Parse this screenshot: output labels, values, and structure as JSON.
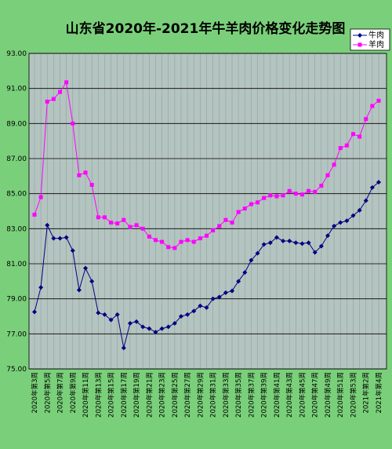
{
  "chart_data": {
    "type": "line",
    "title": "山东省2020年-2021年牛羊肉价格变化走势图",
    "xlabel": "",
    "ylabel": "",
    "ylim": [
      75.0,
      93.0
    ],
    "yticks": [
      "75.00",
      "77.00",
      "79.00",
      "81.00",
      "83.00",
      "85.00",
      "87.00",
      "89.00",
      "91.00",
      "93.00"
    ],
    "grid": true,
    "legend_position": "top-right",
    "x_tick_labels": [
      "2020年第3周",
      "2020年第5周",
      "2020年第7周",
      "2020年第9周",
      "2020年第11周",
      "2020年第13周",
      "2020年第15周",
      "2020年第17周",
      "2020年第19周",
      "2020年第21周",
      "2020年第23周",
      "2020年第25周",
      "2020年第27周",
      "2020年第29周",
      "2020年第31周",
      "2020年第33周",
      "2020年第35周",
      "2020年第37周",
      "2020年第39周",
      "2020年第41周",
      "2020年第43周",
      "2020年第45周",
      "2020年第47周",
      "2020年第49周",
      "2020年第51周",
      "2020年第53周",
      "2021年第2周",
      "2021年第4周"
    ],
    "colors": {
      "beef": "#000080",
      "mutton": "#ff00ff",
      "plot_bg": "#b4c4c0",
      "outer_bg": "#7ad07a"
    },
    "series": [
      {
        "name": "牛肉",
        "marker": "diamond",
        "values": [
          78.25,
          79.65,
          83.2,
          82.45,
          82.45,
          82.5,
          81.75,
          79.5,
          80.75,
          80.0,
          78.2,
          78.1,
          77.8,
          78.1,
          76.2,
          77.6,
          77.7,
          77.4,
          77.3,
          77.1,
          77.3,
          77.4,
          77.6,
          78.0,
          78.1,
          78.3,
          78.6,
          78.5,
          79.0,
          79.1,
          79.35,
          79.45,
          80.0,
          80.5,
          81.2,
          81.6,
          82.1,
          82.2,
          82.5,
          82.3,
          82.3,
          82.2,
          82.15,
          82.2,
          81.65,
          82.0,
          82.6,
          83.15,
          83.35,
          83.45,
          83.75,
          84.05,
          84.6,
          85.35,
          85.65
        ]
      },
      {
        "name": "羊肉",
        "marker": "square",
        "values": [
          83.8,
          84.8,
          90.25,
          90.4,
          90.8,
          91.35,
          89.0,
          86.05,
          86.2,
          85.5,
          83.65,
          83.65,
          83.35,
          83.3,
          83.5,
          83.1,
          83.2,
          83.0,
          82.55,
          82.35,
          82.25,
          81.95,
          81.9,
          82.25,
          82.35,
          82.25,
          82.45,
          82.6,
          82.9,
          83.15,
          83.5,
          83.35,
          83.95,
          84.15,
          84.4,
          84.5,
          84.75,
          84.9,
          84.85,
          84.9,
          85.15,
          85.0,
          84.95,
          85.15,
          85.1,
          85.45,
          86.05,
          86.65,
          87.6,
          87.75,
          88.4,
          88.25,
          89.25,
          90.0,
          90.3
        ]
      }
    ]
  }
}
